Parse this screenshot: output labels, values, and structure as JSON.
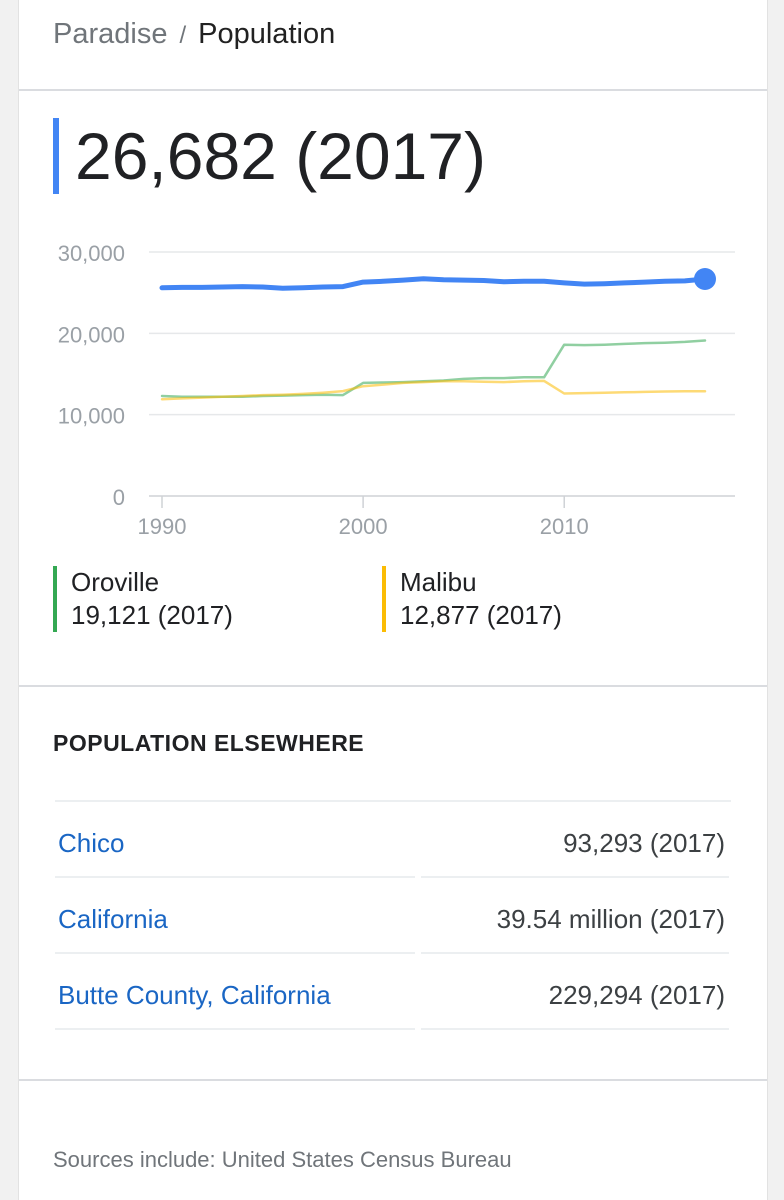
{
  "breadcrumb": {
    "root": "Paradise",
    "separator": "/",
    "current": "Population"
  },
  "headline": "26,682 (2017)",
  "colors": {
    "primary": "#4285f4",
    "oroville": "#34a853",
    "malibu": "#fbbc04",
    "link": "#1a66c4"
  },
  "chart_data": {
    "type": "line",
    "xlim": [
      1990,
      2017
    ],
    "ylim": [
      0,
      30000
    ],
    "y_ticks": [
      {
        "value": 0,
        "label": "0"
      },
      {
        "value": 10000,
        "label": "10,000"
      },
      {
        "value": 20000,
        "label": "20,000"
      },
      {
        "value": 30000,
        "label": "30,000"
      }
    ],
    "x_ticks": [
      {
        "value": 1990,
        "label": "1990"
      },
      {
        "value": 2000,
        "label": "2000"
      },
      {
        "value": 2010,
        "label": "2010"
      }
    ],
    "grid": true,
    "series": [
      {
        "name": "Paradise",
        "color": "#4285f4",
        "end_marker": true,
        "x": [
          1990,
          1991,
          1992,
          1993,
          1994,
          1995,
          1996,
          1997,
          1998,
          1999,
          2000,
          2001,
          2002,
          2003,
          2004,
          2005,
          2006,
          2007,
          2008,
          2009,
          2010,
          2011,
          2012,
          2013,
          2014,
          2015,
          2016,
          2017
        ],
        "y": [
          25600,
          25650,
          25650,
          25700,
          25750,
          25700,
          25550,
          25600,
          25700,
          25750,
          26300,
          26400,
          26550,
          26700,
          26600,
          26550,
          26500,
          26350,
          26400,
          26400,
          26200,
          26050,
          26100,
          26200,
          26300,
          26400,
          26450,
          26682
        ]
      },
      {
        "name": "Oroville",
        "color": "#34a853",
        "x": [
          1990,
          1991,
          1992,
          1993,
          1994,
          1995,
          1996,
          1997,
          1998,
          1999,
          2000,
          2001,
          2002,
          2003,
          2004,
          2005,
          2006,
          2007,
          2008,
          2009,
          2010,
          2011,
          2012,
          2013,
          2014,
          2015,
          2016,
          2017
        ],
        "y": [
          12300,
          12200,
          12200,
          12200,
          12200,
          12300,
          12350,
          12400,
          12450,
          12400,
          13900,
          13950,
          14000,
          14100,
          14200,
          14400,
          14500,
          14500,
          14600,
          14600,
          18600,
          18550,
          18600,
          18700,
          18800,
          18850,
          18950,
          19121
        ]
      },
      {
        "name": "Malibu",
        "color": "#fbbc04",
        "x": [
          1990,
          1991,
          1992,
          1993,
          1994,
          1995,
          1996,
          1997,
          1998,
          1999,
          2000,
          2001,
          2002,
          2003,
          2004,
          2005,
          2006,
          2007,
          2008,
          2009,
          2010,
          2011,
          2012,
          2013,
          2014,
          2015,
          2016,
          2017
        ],
        "y": [
          11900,
          12000,
          12100,
          12200,
          12300,
          12400,
          12450,
          12550,
          12700,
          12900,
          13500,
          13700,
          13900,
          14000,
          14100,
          14100,
          14050,
          14000,
          14100,
          14150,
          12600,
          12650,
          12700,
          12750,
          12800,
          12850,
          12870,
          12877
        ]
      }
    ]
  },
  "legend": [
    {
      "name": "Oroville",
      "value": "19,121 (2017)",
      "color": "#34a853"
    },
    {
      "name": "Malibu",
      "value": "12,877 (2017)",
      "color": "#fbbc04"
    }
  ],
  "elsewhere": {
    "title": "POPULATION ELSEWHERE",
    "rows": [
      {
        "place": "Chico",
        "value": "93,293 (2017)"
      },
      {
        "place": "California",
        "value": "39.54 million (2017)"
      },
      {
        "place": "Butte County, California",
        "value": "229,294 (2017)"
      }
    ]
  },
  "sources": "Sources include: United States Census Bureau"
}
